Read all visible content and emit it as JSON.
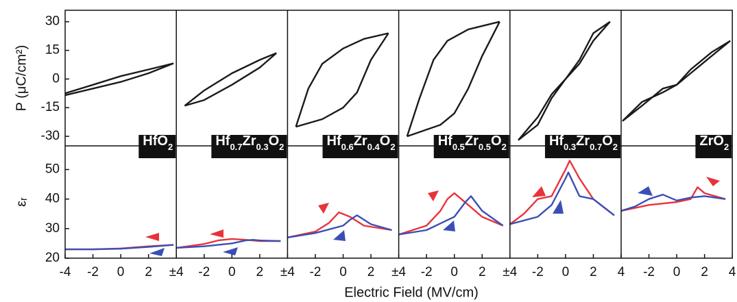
{
  "xlabel": "Electric Field (MV/cm)",
  "chart_data": [
    {
      "type": "line",
      "title": [
        "HfO",
        "2"
      ],
      "xlim": [
        -4,
        4
      ],
      "xticks": [
        -4,
        -2,
        0,
        2,
        {
          "value": 4,
          "label": "±4"
        }
      ],
      "top": {
        "ylabel": "P (μC/cm²)",
        "ylim": [
          -35,
          36
        ],
        "yticks": [
          -30,
          -15,
          0,
          15,
          30
        ],
        "series": [
          {
            "color": "#1a1a1a",
            "x": [
              -4,
              -2,
              0,
              2,
              3.8
            ],
            "values": [
              -7.5,
              -3,
              1.5,
              5,
              8.2
            ]
          },
          {
            "color": "#1a1a1a",
            "x": [
              -4,
              -2,
              0,
              2,
              3.8
            ],
            "values": [
              -8.5,
              -5,
              -1.5,
              3,
              8.2
            ]
          }
        ]
      },
      "bottom": {
        "ylabel": "εᵣ",
        "ylim": [
          20,
          58
        ],
        "yticks": [
          20,
          30,
          40,
          50
        ],
        "series": [
          {
            "color": "#e8333a",
            "x": [
              -4,
              -2,
              0,
              2,
              3.8
            ],
            "values": [
              23,
              23,
              23.3,
              24,
              24.5
            ]
          },
          {
            "color": "#3a4fb5",
            "x": [
              -4,
              -2,
              0,
              2,
              3.8
            ],
            "values": [
              23,
              23,
              23.2,
              23.8,
              24.5
            ]
          }
        ]
      }
    },
    {
      "type": "line",
      "title": [
        "Hf",
        "0.7",
        "Zr",
        "0.3",
        "O",
        "2"
      ],
      "xlim": [
        -4,
        4
      ],
      "xticks": [
        -2,
        0,
        2,
        {
          "value": 4,
          "label": "±4"
        }
      ],
      "top": {
        "ylim": [
          -35,
          36
        ],
        "series": [
          {
            "color": "#1a1a1a",
            "x": [
              -3.4,
              -2,
              0,
              2,
              3.2
            ],
            "values": [
              -14,
              -6,
              3,
              10,
              13.6
            ]
          },
          {
            "color": "#1a1a1a",
            "x": [
              -3.4,
              -2,
              0,
              2,
              3.2
            ],
            "values": [
              -14,
              -11,
              -3,
              6,
              13.6
            ]
          }
        ]
      },
      "bottom": {
        "ylim": [
          20,
          58
        ],
        "series": [
          {
            "color": "#e8333a",
            "x": [
              -4,
              -2,
              -1,
              0,
              1,
              2,
              3.5
            ],
            "values": [
              23.5,
              24.8,
              26,
              26.5,
              26.2,
              25.8,
              25.8
            ]
          },
          {
            "color": "#3a4fb5",
            "x": [
              -4,
              -2,
              0,
              1,
              1.5,
              2,
              3.5
            ],
            "values": [
              23.5,
              24,
              25,
              26,
              26.2,
              26,
              25.8
            ]
          }
        ]
      }
    },
    {
      "type": "line",
      "title": [
        "Hf",
        "0.6",
        "Zr",
        "0.4",
        "O",
        "2"
      ],
      "xlim": [
        -4,
        4
      ],
      "xticks": [
        -2,
        0,
        2,
        {
          "value": 4,
          "label": "±4"
        }
      ],
      "top": {
        "ylim": [
          -35,
          36
        ],
        "series": [
          {
            "color": "#1a1a1a",
            "x": [
              -3.4,
              -2.5,
              -1.5,
              0,
              1.5,
              3.26
            ],
            "values": [
              -25,
              -5,
              8,
              16,
              21,
              24
            ]
          },
          {
            "color": "#1a1a1a",
            "x": [
              -3.4,
              -1.5,
              0,
              1,
              2,
              3.26
            ],
            "values": [
              -25,
              -21,
              -15,
              -7,
              10,
              24
            ]
          }
        ]
      },
      "bottom": {
        "ylim": [
          20,
          58
        ],
        "series": [
          {
            "color": "#e8333a",
            "x": [
              -4,
              -2,
              -1,
              -0.3,
              0.5,
              1.5,
              3.5
            ],
            "values": [
              27,
              29,
              32,
              35.5,
              34,
              31,
              29.5
            ]
          },
          {
            "color": "#3a4fb5",
            "x": [
              -4,
              -2,
              0,
              0.5,
              1,
              2,
              3.5
            ],
            "values": [
              27,
              28.5,
              31,
              33,
              34.5,
              31.5,
              29.5
            ]
          }
        ]
      }
    },
    {
      "type": "line",
      "title": [
        "Hf",
        "0.5",
        "Zr",
        "0.5",
        "O",
        "2"
      ],
      "xlim": [
        -4,
        4
      ],
      "xticks": [
        -2,
        0,
        2,
        {
          "value": 4,
          "label": "±4"
        }
      ],
      "top": {
        "ylim": [
          -35,
          36
        ],
        "series": [
          {
            "color": "#1a1a1a",
            "x": [
              -3.4,
              -2.5,
              -1.5,
              -0.5,
              1,
              3.26
            ],
            "values": [
              -30,
              -10,
              10,
              20,
              26,
              30
            ]
          },
          {
            "color": "#1a1a1a",
            "x": [
              -3.4,
              -1,
              0,
              1,
              2,
              3.26
            ],
            "values": [
              -30,
              -24,
              -18,
              -5,
              12,
              30
            ]
          }
        ]
      },
      "bottom": {
        "ylim": [
          20,
          58
        ],
        "series": [
          {
            "color": "#e8333a",
            "x": [
              -4,
              -2,
              -1,
              -0.5,
              0,
              1,
              2,
              3.5
            ],
            "values": [
              28,
              31,
              36,
              40,
              42,
              38,
              34,
              31
            ]
          },
          {
            "color": "#3a4fb5",
            "x": [
              -4,
              -2,
              0,
              0.8,
              1.2,
              2,
              3.5
            ],
            "values": [
              28,
              29.5,
              34,
              39,
              41,
              36,
              31
            ]
          }
        ]
      }
    },
    {
      "type": "line",
      "title": [
        "Hf",
        "0.3",
        "Zr",
        "0.7",
        "O",
        "2"
      ],
      "xlim": [
        -4,
        4
      ],
      "xticks": [
        -2,
        0,
        2,
        4
      ],
      "top": {
        "ylim": [
          -35,
          36
        ],
        "series": [
          {
            "color": "#1a1a1a",
            "x": [
              -3.4,
              -2,
              -1,
              0,
              1,
              2,
              3.2
            ],
            "values": [
              -32,
              -24,
              -10,
              0,
              8,
              20,
              30
            ]
          },
          {
            "color": "#1a1a1a",
            "x": [
              -3.4,
              -2,
              -1,
              0,
              1,
              2,
              3.2
            ],
            "values": [
              -32,
              -20,
              -8,
              0,
              10,
              24,
              30
            ]
          }
        ]
      },
      "bottom": {
        "ylim": [
          20,
          58
        ],
        "series": [
          {
            "color": "#e8333a",
            "x": [
              -4,
              -3,
              -2,
              -1,
              0,
              0.3,
              1,
              2,
              3.5
            ],
            "values": [
              31.5,
              35,
              40,
              41,
              50,
              53,
              47,
              40,
              34.5
            ]
          },
          {
            "color": "#3a4fb5",
            "x": [
              -4,
              -2,
              -1,
              0,
              0.2,
              1,
              2,
              3.5
            ],
            "values": [
              31.5,
              34,
              38,
              47,
              49,
              41,
              40,
              34.5
            ]
          }
        ]
      }
    },
    {
      "type": "line",
      "title": [
        "ZrO",
        "2"
      ],
      "xlim": [
        -4,
        4
      ],
      "xticks": [
        -2,
        0,
        2,
        4
      ],
      "top": {
        "ylim": [
          -35,
          36
        ],
        "series": [
          {
            "color": "#1a1a1a",
            "x": [
              -3.9,
              -2.5,
              -1,
              0,
              1,
              2.5,
              3.85
            ],
            "values": [
              -22,
              -12,
              -7,
              -3,
              5,
              14,
              20
            ]
          },
          {
            "color": "#1a1a1a",
            "x": [
              -3.9,
              -2.5,
              -1,
              0,
              1,
              2.5,
              3.85
            ],
            "values": [
              -22,
              -14,
              -5,
              -3,
              3,
              12,
              20
            ]
          }
        ]
      },
      "bottom": {
        "ylim": [
          20,
          58
        ],
        "series": [
          {
            "color": "#e8333a",
            "x": [
              -4,
              -2,
              -1,
              0,
              1,
              1.5,
              2,
              3.5
            ],
            "values": [
              36,
              38,
              38.5,
              39,
              40,
              44,
              42,
              40
            ]
          },
          {
            "color": "#3a4fb5",
            "x": [
              -4,
              -3,
              -2,
              -1,
              0,
              1,
              2,
              3.5
            ],
            "values": [
              36,
              37.5,
              40,
              41.5,
              39.5,
              40.5,
              41,
              40
            ]
          }
        ]
      }
    }
  ]
}
